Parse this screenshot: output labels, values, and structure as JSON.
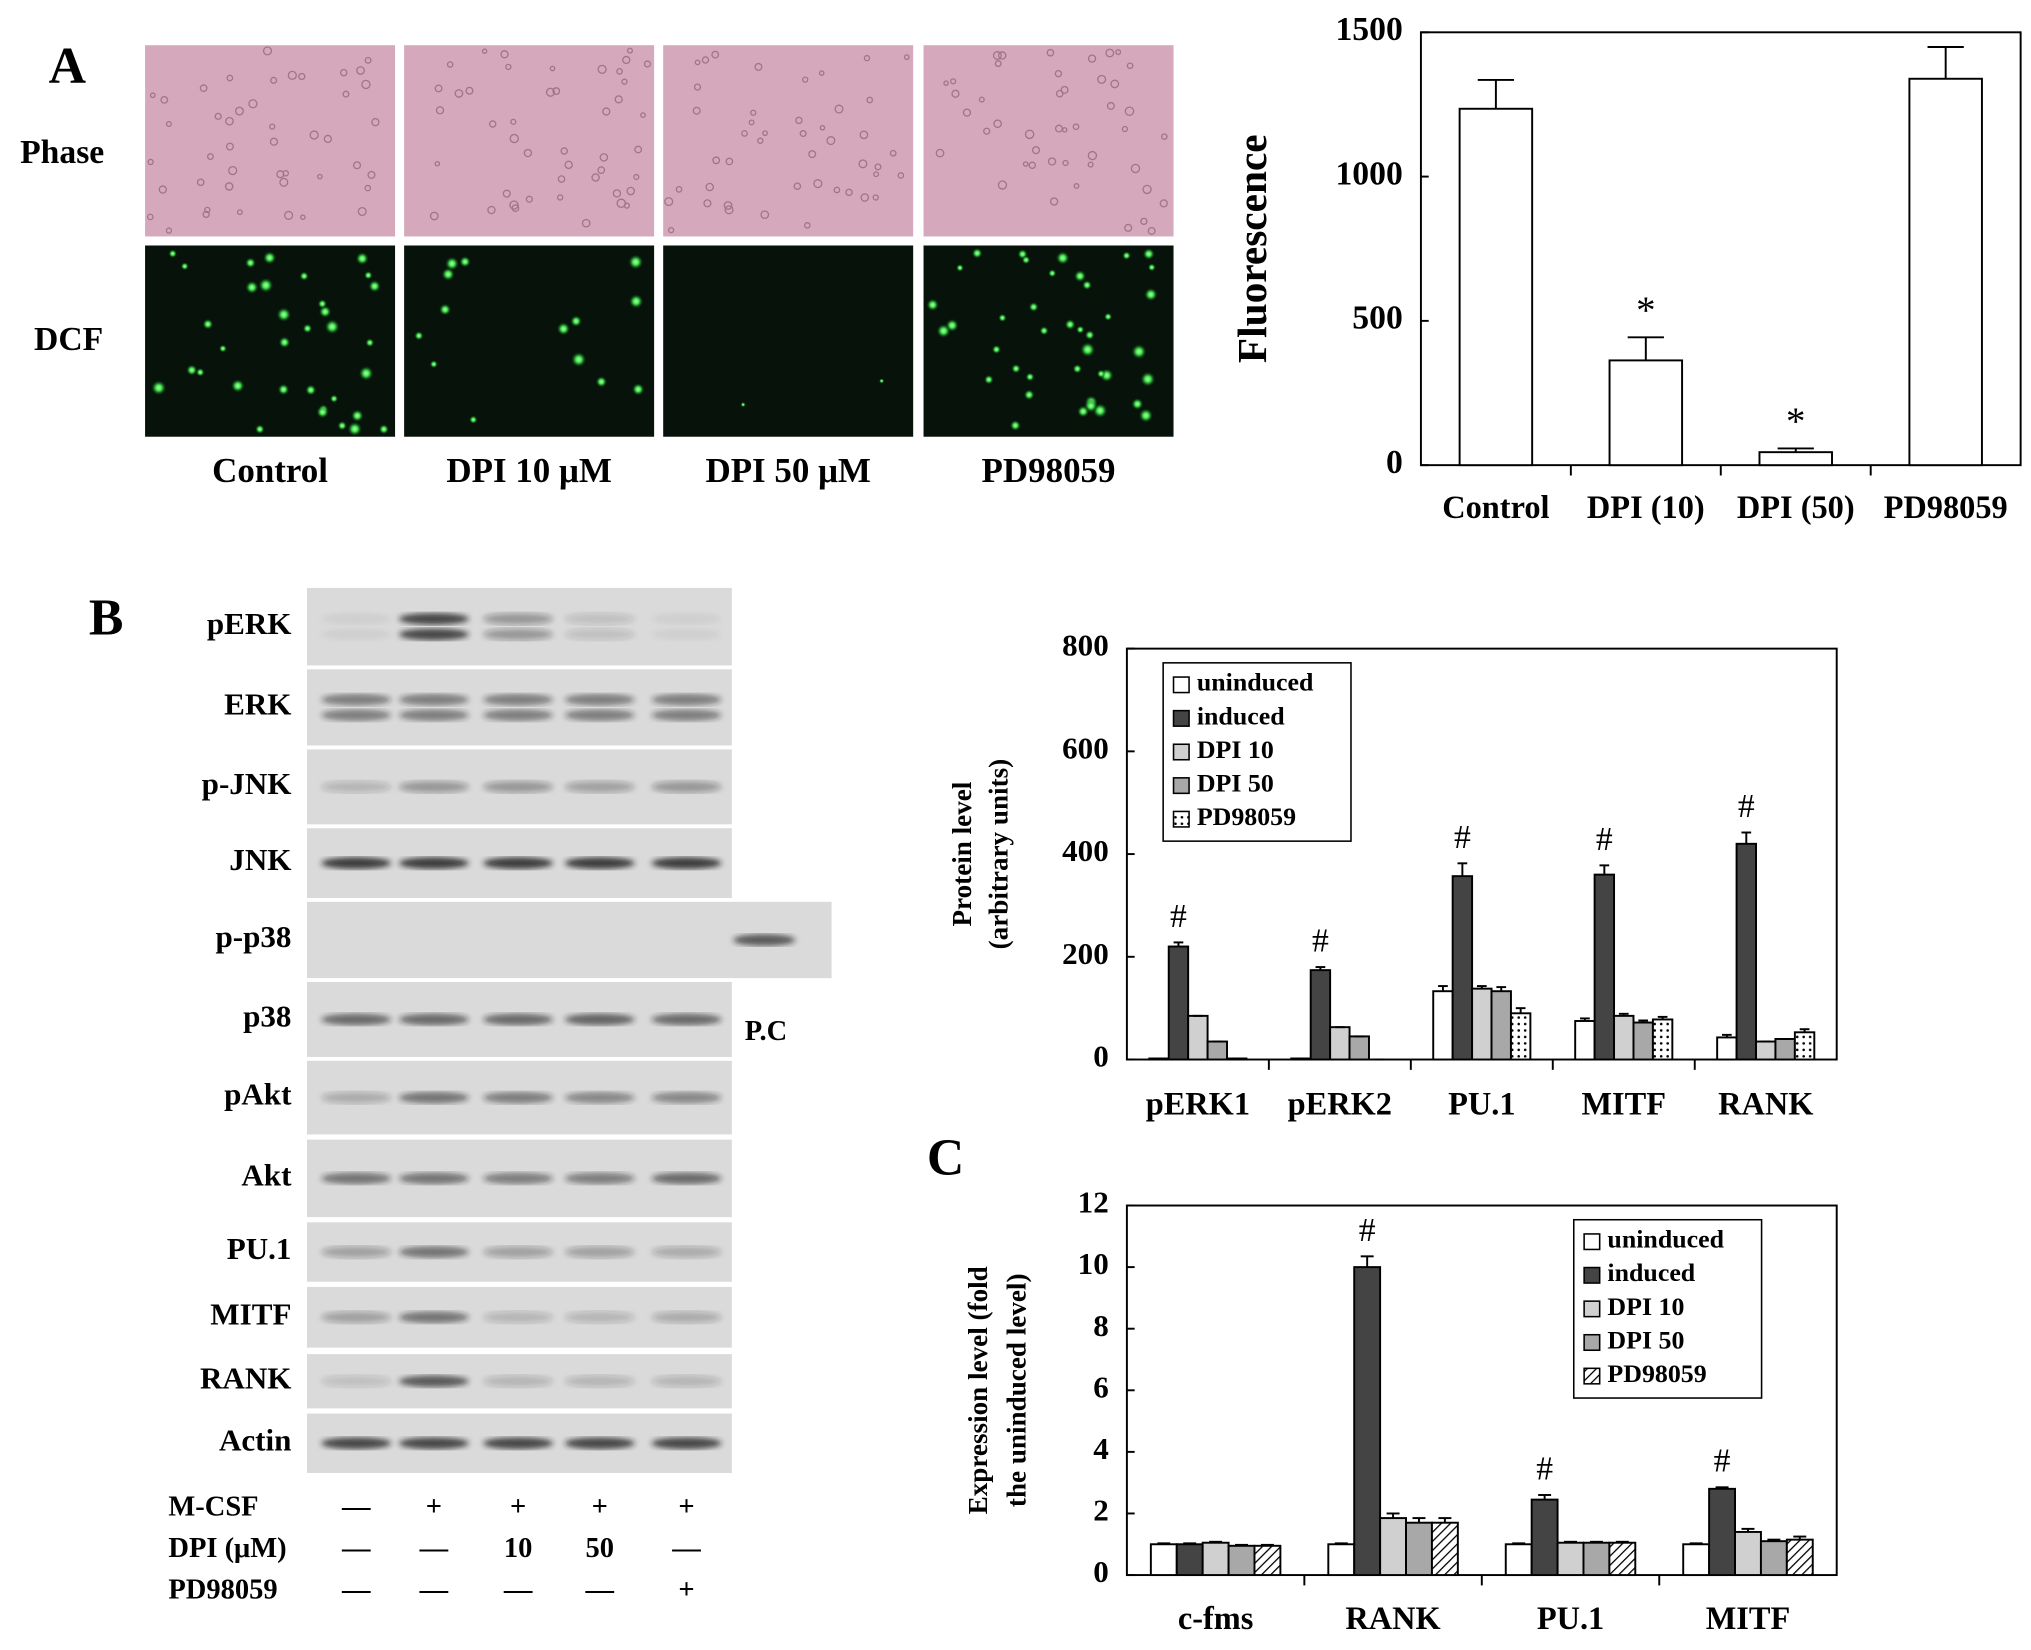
{
  "panels": {
    "a": {
      "letter": "A",
      "rows": [
        "Phase",
        "DCF"
      ],
      "conditions": [
        "Control",
        "DPI 10 μM",
        "DPI 50 μM",
        "PD98059"
      ]
    },
    "b": {
      "letter": "B",
      "blots": [
        "pERK",
        "ERK",
        "p-JNK",
        "JNK",
        "p-p38",
        "p38",
        "pAkt",
        "Akt",
        "PU.1",
        "MITF",
        "RANK",
        "Actin"
      ],
      "positive_control": "P.C",
      "treatments": [
        {
          "label": "M-CSF",
          "cells": [
            "—",
            "+",
            "+",
            "+",
            "+"
          ]
        },
        {
          "label": "DPI (μM)",
          "cells": [
            "—",
            "—",
            "10",
            "50",
            "—"
          ]
        },
        {
          "label": "PD98059",
          "cells": [
            "—",
            "—",
            "—",
            "—",
            "+"
          ]
        }
      ]
    },
    "c": {
      "letter": "C"
    }
  },
  "chart_data": [
    {
      "type": "bar",
      "ylabel": [
        "Fluorescence"
      ],
      "categories": [
        "Control",
        "DPI (10)",
        "DPI (50)",
        "PD98059"
      ],
      "values": [
        1235,
        363,
        45,
        1339
      ],
      "errors": [
        100,
        80,
        13,
        110
      ],
      "annotations": [
        null,
        "*",
        "*",
        null
      ],
      "color": "#ffffff",
      "ylim": [
        0,
        1500
      ],
      "yticks": [
        0,
        500,
        1000,
        1500
      ]
    },
    {
      "type": "bar",
      "ylabel": [
        "Protein level",
        "(arbitrary units)"
      ],
      "categories": [
        "pERK1",
        "pERK2",
        "PU.1",
        "MITF",
        "RANK"
      ],
      "series": [
        {
          "name": "uninduced",
          "color": "#ffffff",
          "values": [
            2,
            2,
            133,
            75,
            43
          ],
          "errors": [
            0,
            0,
            10,
            5,
            5
          ]
        },
        {
          "name": "induced",
          "color": "#444444",
          "values": [
            220,
            174,
            357,
            360,
            420
          ],
          "errors": [
            8,
            6,
            25,
            18,
            22
          ],
          "annotations": [
            "#",
            "#",
            "#",
            "#",
            "#"
          ]
        },
        {
          "name": "DPI 10",
          "color": "#d0d0d0",
          "values": [
            85,
            63,
            138,
            85,
            35
          ],
          "errors": [
            0,
            0,
            5,
            4,
            0
          ]
        },
        {
          "name": "DPI 50",
          "color": "#a8a8a8",
          "values": [
            35,
            45,
            133,
            72,
            40
          ],
          "errors": [
            0,
            0,
            8,
            4,
            0
          ]
        },
        {
          "name": "PD98059",
          "color": "#ffffff",
          "pattern": "dots",
          "values": [
            2,
            0,
            90,
            78,
            53
          ],
          "errors": [
            0,
            0,
            10,
            5,
            6
          ]
        }
      ],
      "legend": "upper left",
      "ylim": [
        0,
        800
      ],
      "yticks": [
        0,
        200,
        400,
        600,
        800
      ]
    },
    {
      "type": "bar",
      "ylabel": [
        "Expression level (fold",
        "the uninduced level)"
      ],
      "categories": [
        "c-fms",
        "RANK",
        "PU.1",
        "MITF"
      ],
      "series": [
        {
          "name": "uninduced",
          "color": "#ffffff",
          "values": [
            1.0,
            1.0,
            1.0,
            1.0
          ],
          "errors": [
            0.03,
            0.03,
            0.03,
            0.03
          ]
        },
        {
          "name": "induced",
          "color": "#444444",
          "values": [
            1.0,
            10.0,
            2.45,
            2.8
          ],
          "errors": [
            0.03,
            0.35,
            0.15,
            0.05
          ],
          "annotations": [
            null,
            "#",
            "#",
            "#"
          ]
        },
        {
          "name": "DPI 10",
          "color": "#d0d0d0",
          "values": [
            1.05,
            1.85,
            1.05,
            1.4
          ],
          "errors": [
            0.03,
            0.15,
            0.03,
            0.1
          ]
        },
        {
          "name": "DPI 50",
          "color": "#a8a8a8",
          "values": [
            0.95,
            1.7,
            1.05,
            1.1
          ],
          "errors": [
            0.03,
            0.15,
            0.03,
            0.05
          ]
        },
        {
          "name": "PD98059",
          "color": "#ffffff",
          "pattern": "hatch",
          "values": [
            0.95,
            1.7,
            1.05,
            1.15
          ],
          "errors": [
            0.03,
            0.15,
            0.03,
            0.1
          ]
        }
      ],
      "legend": "upper right",
      "ylim": [
        0,
        12
      ],
      "yticks": [
        0,
        2,
        4,
        6,
        8,
        10,
        12
      ]
    }
  ]
}
